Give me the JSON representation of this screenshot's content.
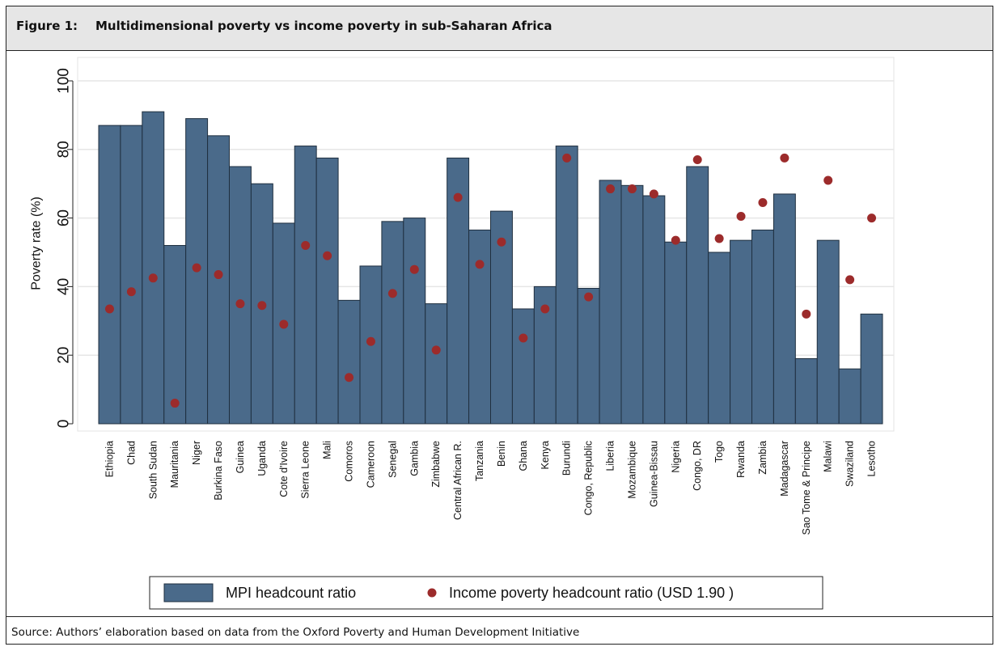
{
  "figure": {
    "label": "Figure 1:",
    "title": "Multidimensional poverty vs income poverty in sub-Saharan Africa"
  },
  "source": "Source: Authors’ elaboration based on data from the Oxford Poverty and Human Development Initiative",
  "colors": {
    "bar": "#4a6a8a",
    "dot": "#9c2b2b",
    "grid": "#e6e6e6"
  },
  "chart_data": {
    "type": "bar",
    "ylabel": "Poverty rate (%)",
    "xlabel": "",
    "ylim": [
      0,
      100
    ],
    "yticks": [
      0,
      20,
      40,
      60,
      80,
      100
    ],
    "grid": true,
    "legend_position": "bottom",
    "categories": [
      "Ethiopia",
      "Chad",
      "South Sudan",
      "Mauritania",
      "Niger",
      "Burkina Faso",
      "Guinea",
      "Uganda",
      "Cote d'Ivoire",
      "Sierra Leone",
      "Mali",
      "Comoros",
      "Cameroon",
      "Senegal",
      "Gambia",
      "Zimbabwe",
      "Central African R.",
      "Tanzania",
      "Benin",
      "Ghana",
      "Kenya",
      "Burundi",
      "Congo, Republic",
      "Liberia",
      "Mozambique",
      "Guinea-Bissau",
      "Nigeria",
      "Congo, DR",
      "Togo",
      "Rwanda",
      "Zambia",
      "Madagascar",
      "Sao Tome & Principe",
      "Malawi",
      "Swaziland",
      "Lesotho"
    ],
    "series": [
      {
        "name": "MPI headcount ratio",
        "kind": "bar",
        "values": [
          87,
          87,
          91,
          52,
          89,
          84,
          75,
          70,
          58.5,
          81,
          77.5,
          36,
          46,
          59,
          60,
          35,
          77.5,
          56.5,
          62,
          33.5,
          40,
          81,
          39.5,
          71,
          69.5,
          66.5,
          53,
          75,
          50,
          53.5,
          56.5,
          67,
          19,
          53.5,
          16,
          32
        ]
      },
      {
        "name": "Income poverty headcount ratio (USD 1.90 )",
        "kind": "dot",
        "values": [
          33.5,
          38.5,
          42.5,
          6,
          45.5,
          43.5,
          35,
          34.5,
          29,
          52,
          49,
          13.5,
          24,
          38,
          45,
          21.5,
          66,
          46.5,
          53,
          25,
          33.5,
          77.5,
          37,
          68.5,
          68.5,
          67,
          53.5,
          77,
          54,
          60.5,
          64.5,
          77.5,
          32,
          71,
          42,
          60
        ]
      }
    ]
  }
}
